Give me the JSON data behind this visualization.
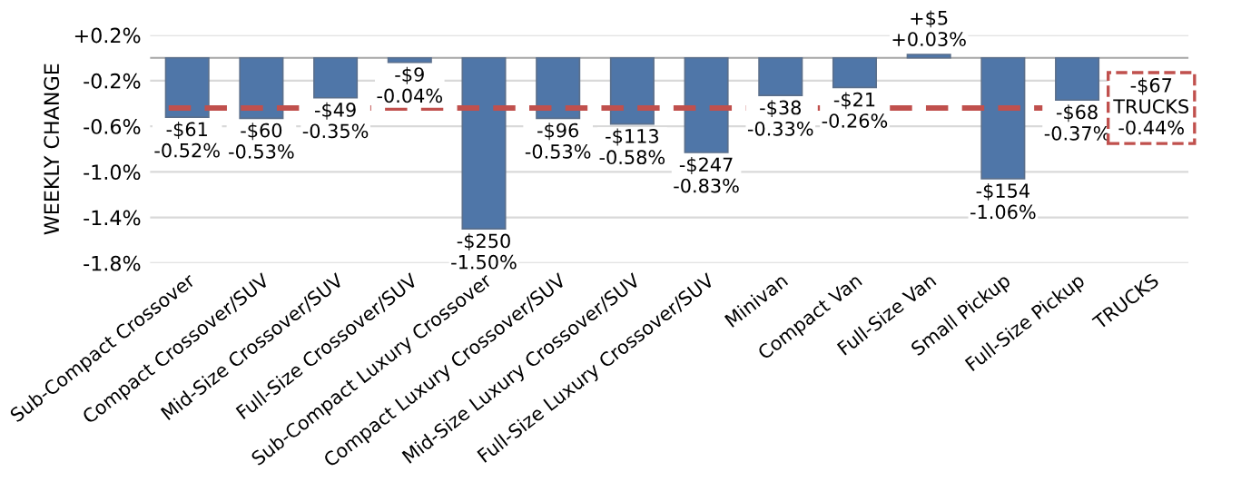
{
  "chart_data": {
    "type": "bar",
    "ylabel": "WEEKLY CHANGE",
    "categories": [
      "Sub-Compact Crossover",
      "Compact Crossover/SUV",
      "Mid-Size Crossover/SUV",
      "Full-Size Crossover/SUV",
      "Sub-Compact Luxury Crossover",
      "Compact Luxury Crossover/SUV",
      "Mid-Size Luxury Crossover/SUV",
      "Full-Size Luxury Crossover/SUV",
      "Minivan",
      "Compact Van",
      "Full-Size Van",
      "Small Pickup",
      "Full-Size Pickup",
      "TRUCKS"
    ],
    "values": [
      -0.52,
      -0.53,
      -0.35,
      -0.04,
      -1.5,
      -0.53,
      -0.58,
      -0.83,
      -0.33,
      -0.26,
      0.03,
      -1.06,
      -0.37,
      null
    ],
    "value_labels": [
      "-$61\n-0.52%",
      "-$60\n-0.53%",
      "-$49\n-0.35%",
      "-$9\n-0.04%",
      "-$250\n-1.50%",
      "-$96\n-0.53%",
      "-$113\n-0.58%",
      "-$247\n-0.83%",
      "-$38\n-0.33%",
      "-$21\n-0.26%",
      "+$5\n+0.03%",
      "-$154\n-1.06%",
      "-$68\n-0.37%",
      null
    ],
    "color": "#4f76a8",
    "ylim": [
      -1.8,
      0.2
    ],
    "yticks": [
      {
        "value": 0.2,
        "label": "+0.2%"
      },
      {
        "value": -0.2,
        "label": "-0.2%"
      },
      {
        "value": -0.6,
        "label": "-0.6%"
      },
      {
        "value": -1.0,
        "label": "-1.0%"
      },
      {
        "value": -1.4,
        "label": "-1.4%"
      },
      {
        "value": -1.8,
        "label": "-1.8%"
      }
    ],
    "grid": "y",
    "ref_lines": [
      {
        "axis": "y",
        "value": -0.44,
        "label": "-$67\nTRUCKS\n-0.44%",
        "color": "#c0504d",
        "line_style": "dashed"
      }
    ]
  }
}
